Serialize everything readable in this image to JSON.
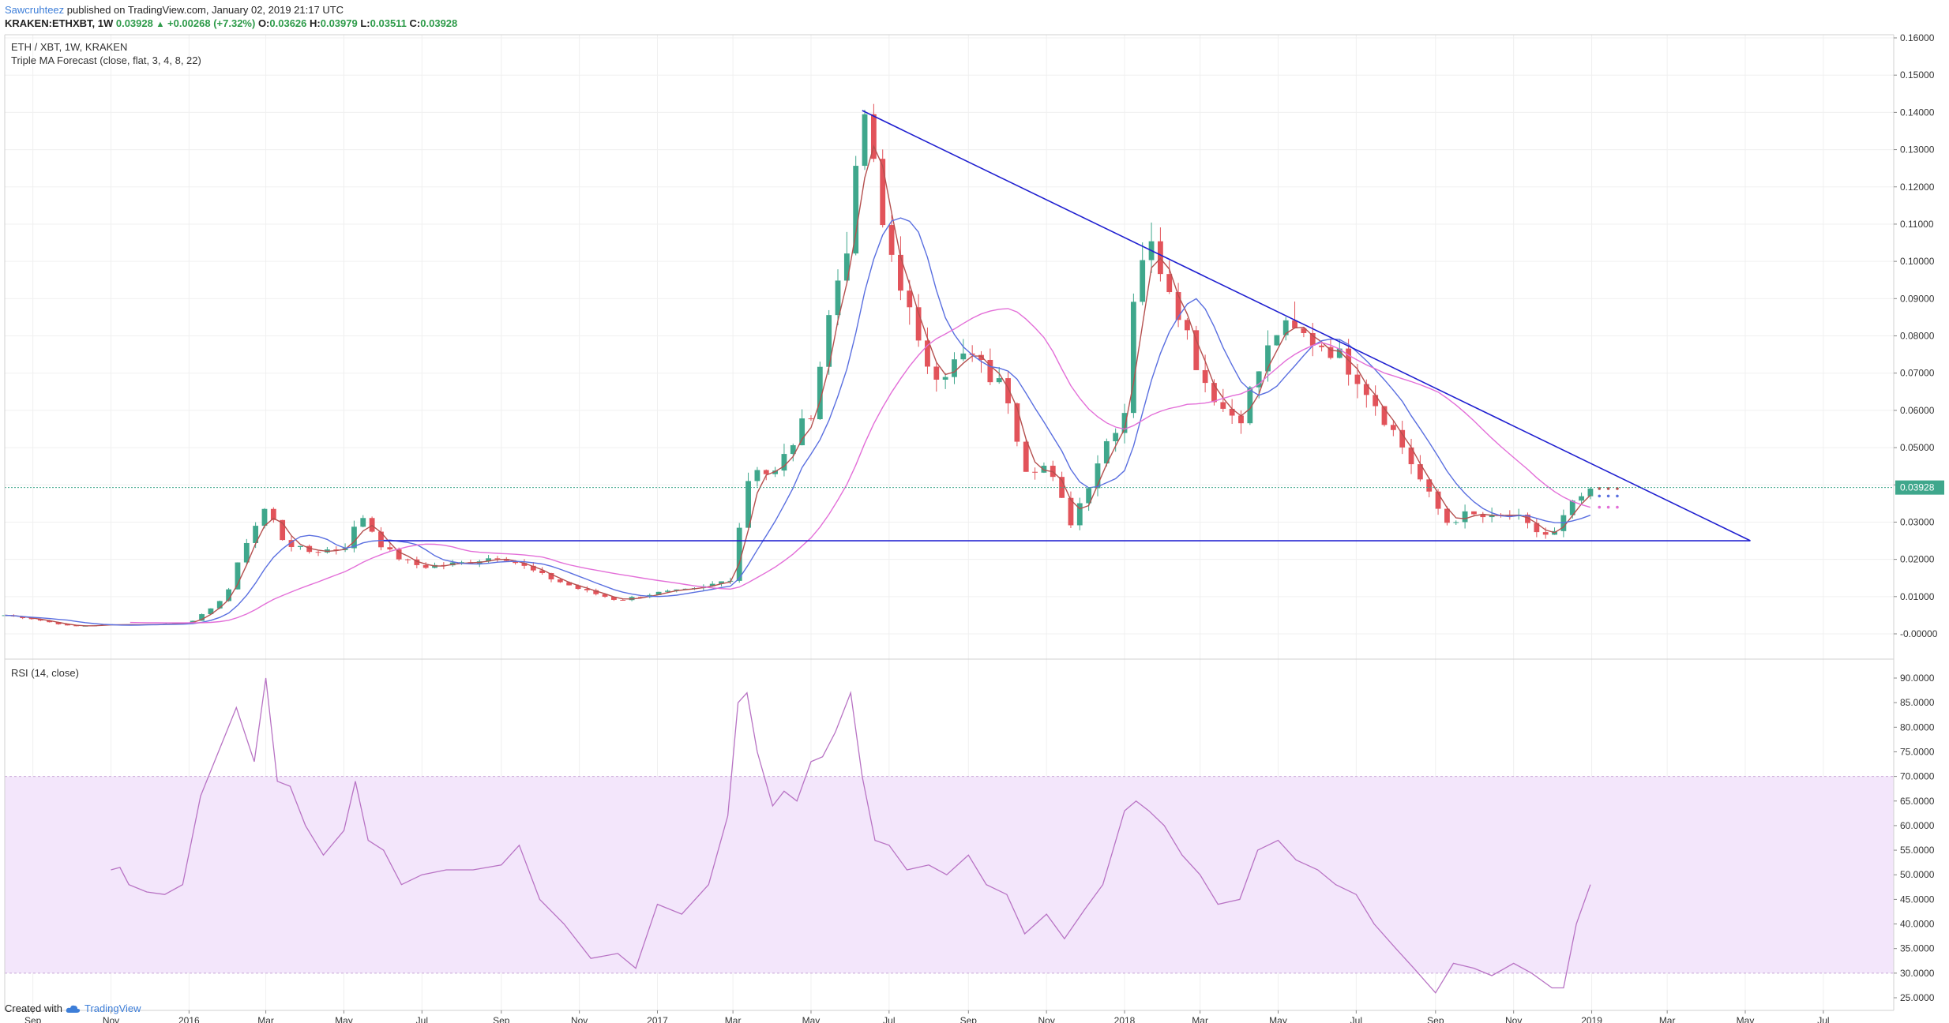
{
  "header": {
    "author": "Sawcruhteez",
    "published_text": "published on TradingView.com, January 02, 2019 21:17 UTC",
    "symbol": "KRAKEN:ETHXBT, 1W",
    "close": "0.03928",
    "change_arrow": "▲",
    "change": "+0.00268 (+7.32%)",
    "o_label": "O:",
    "o": "0.03626",
    "h_label": "H:",
    "h": "0.03979",
    "l_label": "L:",
    "l": "0.03511",
    "c_label": "C:",
    "c": "0.03928"
  },
  "footer": {
    "created_with": "Created with",
    "brand": "TradingView",
    "logo_icon": "tradingview-cloud-icon"
  },
  "colors": {
    "up": "#3fa78c",
    "down": "#e2535a",
    "ma_fast": "#b5504f",
    "ma_mid": "#5a6fe0",
    "ma_slow": "#e36fd8",
    "trendline": "#2020d0",
    "rsi": "#b873c4",
    "rsi_band": "#f3e6fb"
  },
  "chart_data": [
    {
      "type": "candlestick",
      "title": "ETH / XBT, 1W, KRAKEN",
      "indicator_label": "Triple MA Forecast (close, flat, 3, 4, 8, 22)",
      "ylim": [
        -0.005,
        0.16
      ],
      "y_ticks": [
        "0.16000",
        "0.15000",
        "0.14000",
        "0.13000",
        "0.12000",
        "0.11000",
        "0.10000",
        "0.09000",
        "0.08000",
        "0.07000",
        "0.06000",
        "0.05000",
        "0.04000",
        "0.03000",
        "0.02000",
        "0.01000",
        "-0.00000"
      ],
      "y_tick_values": [
        0.16,
        0.15,
        0.14,
        0.13,
        0.12,
        0.11,
        0.1,
        0.09,
        0.08,
        0.07,
        0.06,
        0.05,
        0.04,
        0.03,
        0.02,
        0.01,
        0.0
      ],
      "last_price_label": "0.03928",
      "last_price": 0.03928,
      "x_ticks": [
        "Sep",
        "Nov",
        "2016",
        "Mar",
        "May",
        "Jul",
        "Sep",
        "Nov",
        "2017",
        "Mar",
        "May",
        "Jul",
        "Sep",
        "Nov",
        "2018",
        "Mar",
        "May",
        "Jul",
        "Sep",
        "Nov",
        "2019",
        "Mar",
        "May",
        "Jul"
      ],
      "x_tick_dates": [
        "2015-09-01",
        "2015-11-01",
        "2016-01-01",
        "2016-03-01",
        "2016-05-01",
        "2016-07-01",
        "2016-09-01",
        "2016-11-01",
        "2017-01-01",
        "2017-03-01",
        "2017-05-01",
        "2017-07-01",
        "2017-09-01",
        "2017-11-01",
        "2018-01-01",
        "2018-03-01",
        "2018-05-01",
        "2018-07-01",
        "2018-09-01",
        "2018-11-01",
        "2019-01-01",
        "2019-03-01",
        "2019-05-01",
        "2019-07-01"
      ],
      "x_range": [
        "2015-08-10",
        "2019-08-25"
      ],
      "close_series": {
        "dates": [
          "2015-08-10",
          "2015-09-01",
          "2015-10-01",
          "2015-11-01",
          "2015-12-01",
          "2016-01-01",
          "2016-01-20",
          "2016-02-01",
          "2016-02-15",
          "2016-03-01",
          "2016-03-15",
          "2016-04-01",
          "2016-05-01",
          "2016-05-15",
          "2016-06-01",
          "2016-06-15",
          "2016-07-01",
          "2016-08-01",
          "2016-09-01",
          "2016-10-01",
          "2016-11-01",
          "2016-12-01",
          "2017-01-01",
          "2017-02-01",
          "2017-03-01",
          "2017-03-10",
          "2017-03-20",
          "2017-04-01",
          "2017-05-01",
          "2017-05-15",
          "2017-06-01",
          "2017-06-12",
          "2017-06-25",
          "2017-07-10",
          "2017-07-25",
          "2017-08-10",
          "2017-09-01",
          "2017-09-15",
          "2017-10-01",
          "2017-10-15",
          "2017-11-01",
          "2017-11-20",
          "2017-12-01",
          "2017-12-15",
          "2018-01-01",
          "2018-01-10",
          "2018-01-20",
          "2018-02-01",
          "2018-02-15",
          "2018-03-01",
          "2018-03-20",
          "2018-04-01",
          "2018-04-15",
          "2018-05-01",
          "2018-05-20",
          "2018-06-10",
          "2018-07-01",
          "2018-07-20",
          "2018-08-10",
          "2018-08-25",
          "2018-09-10",
          "2018-09-25",
          "2018-10-15",
          "2018-11-01",
          "2018-11-15",
          "2018-12-01",
          "2018-12-15",
          "2018-12-31"
        ],
        "values": [
          0.005,
          0.004,
          0.002,
          0.0025,
          0.0025,
          0.003,
          0.007,
          0.012,
          0.025,
          0.034,
          0.025,
          0.022,
          0.023,
          0.032,
          0.023,
          0.02,
          0.018,
          0.019,
          0.021,
          0.016,
          0.012,
          0.009,
          0.011,
          0.012,
          0.015,
          0.04,
          0.045,
          0.042,
          0.06,
          0.085,
          0.11,
          0.14,
          0.11,
          0.095,
          0.075,
          0.07,
          0.075,
          0.07,
          0.065,
          0.045,
          0.045,
          0.03,
          0.038,
          0.05,
          0.06,
          0.1,
          0.104,
          0.098,
          0.085,
          0.07,
          0.06,
          0.058,
          0.07,
          0.082,
          0.08,
          0.077,
          0.07,
          0.06,
          0.048,
          0.038,
          0.03,
          0.032,
          0.031,
          0.032,
          0.028,
          0.026,
          0.034,
          0.039
        ]
      },
      "ma_forecast_points": [
        0.039,
        0.037,
        0.034
      ],
      "trendlines": [
        {
          "name": "descending resistance",
          "from": [
            "2017-06-10",
            0.1405
          ],
          "to": [
            "2019-05-05",
            0.025
          ]
        },
        {
          "name": "horizontal support",
          "from": [
            "2016-06-01",
            0.025
          ],
          "to": [
            "2019-05-05",
            0.025
          ]
        }
      ]
    },
    {
      "type": "line",
      "title": "RSI (14, close)",
      "ylim": [
        24,
        92
      ],
      "band": [
        30,
        70
      ],
      "y_ticks": [
        "90.0000",
        "85.0000",
        "80.0000",
        "75.0000",
        "70.0000",
        "65.0000",
        "60.0000",
        "55.0000",
        "50.0000",
        "45.0000",
        "40.0000",
        "35.0000",
        "30.0000",
        "25.0000"
      ],
      "y_tick_values": [
        90,
        85,
        80,
        75,
        70,
        65,
        60,
        55,
        50,
        45,
        40,
        35,
        30,
        25
      ],
      "series": [
        {
          "dates": [
            "2015-11-01",
            "2015-11-08",
            "2015-11-15",
            "2015-11-29",
            "2015-12-13",
            "2015-12-27",
            "2016-01-10",
            "2016-01-24",
            "2016-02-07",
            "2016-02-21",
            "2016-03-01",
            "2016-03-10",
            "2016-03-20",
            "2016-04-01",
            "2016-04-15",
            "2016-05-01",
            "2016-05-10",
            "2016-05-20",
            "2016-06-01",
            "2016-06-15",
            "2016-07-01",
            "2016-07-20",
            "2016-08-10",
            "2016-09-01",
            "2016-09-15",
            "2016-10-01",
            "2016-10-20",
            "2016-11-10",
            "2016-12-01",
            "2016-12-15",
            "2017-01-01",
            "2017-01-20",
            "2017-02-10",
            "2017-02-25",
            "2017-03-05",
            "2017-03-12",
            "2017-03-20",
            "2017-04-01",
            "2017-04-10",
            "2017-04-20",
            "2017-05-01",
            "2017-05-10",
            "2017-05-20",
            "2017-06-01",
            "2017-06-10",
            "2017-06-20",
            "2017-07-01",
            "2017-07-15",
            "2017-08-01",
            "2017-08-15",
            "2017-09-01",
            "2017-09-15",
            "2017-10-01",
            "2017-10-15",
            "2017-11-01",
            "2017-11-15",
            "2017-12-01",
            "2017-12-15",
            "2018-01-01",
            "2018-01-10",
            "2018-01-20",
            "2018-02-01",
            "2018-02-15",
            "2018-03-01",
            "2018-03-15",
            "2018-04-01",
            "2018-04-15",
            "2018-05-01",
            "2018-05-15",
            "2018-06-01",
            "2018-06-15",
            "2018-07-01",
            "2018-07-15",
            "2018-08-01",
            "2018-08-15",
            "2018-09-01",
            "2018-09-15",
            "2018-10-01",
            "2018-10-15",
            "2018-11-01",
            "2018-11-15",
            "2018-12-01",
            "2018-12-10",
            "2018-12-20",
            "2018-12-31"
          ],
          "values": [
            51,
            51.5,
            48,
            46.5,
            46,
            48,
            66,
            75,
            84,
            73,
            90,
            69,
            68,
            60,
            54,
            59,
            69,
            57,
            55,
            48,
            50,
            51,
            51,
            52,
            56,
            45,
            40,
            33,
            34,
            31,
            44,
            42,
            48,
            62,
            85,
            87,
            75,
            64,
            67,
            65,
            73,
            74,
            79,
            87,
            70,
            57,
            56,
            51,
            52,
            50,
            54,
            48,
            46,
            38,
            42,
            37,
            43,
            48,
            63,
            65,
            63,
            60,
            54,
            50,
            44,
            45,
            55,
            57,
            53,
            51,
            48,
            46,
            40,
            35,
            31,
            26,
            32,
            31,
            29.5,
            32,
            30,
            27,
            27,
            40,
            48
          ]
        }
      ]
    }
  ]
}
